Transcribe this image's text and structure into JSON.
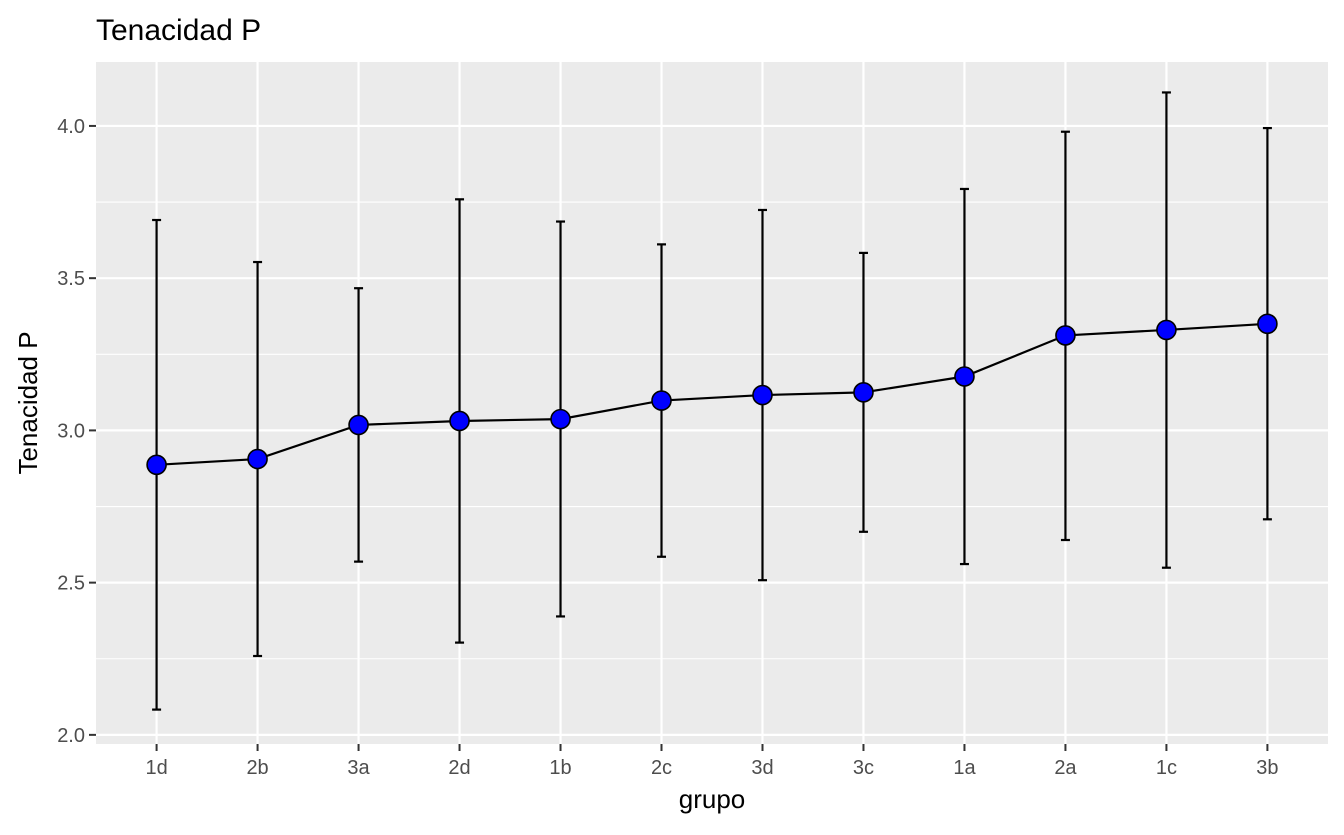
{
  "chart_data": {
    "type": "line",
    "title": "Tenacidad P",
    "xlabel": "grupo",
    "ylabel": "Tenacidad P",
    "categories": [
      "1d",
      "2b",
      "3a",
      "2d",
      "1b",
      "2c",
      "3d",
      "3c",
      "1a",
      "2a",
      "1c",
      "3b"
    ],
    "series": [
      {
        "values": [
          2.887,
          2.906,
          3.018,
          3.031,
          3.037,
          3.098,
          3.116,
          3.125,
          3.177,
          3.312,
          3.33,
          3.35
        ],
        "lower": [
          2.083,
          2.259,
          2.569,
          2.303,
          2.389,
          2.585,
          2.508,
          2.667,
          2.561,
          2.64,
          2.549,
          2.708
        ],
        "upper": [
          3.691,
          3.553,
          3.467,
          3.759,
          3.686,
          3.611,
          3.724,
          3.583,
          3.793,
          3.981,
          4.11,
          3.993
        ]
      }
    ],
    "y_ticks": [
      "2.0",
      "2.5",
      "3.0",
      "3.5",
      "4.0"
    ],
    "ylim": [
      1.97,
      4.21
    ],
    "grid": true,
    "legend": "none",
    "colors": {
      "panel": "#EBEBEB",
      "grid": "#FFFFFF",
      "line": "#000000",
      "point_fill": "#0000FF",
      "point_stroke": "#000000",
      "text": "#000000",
      "tick_text": "#4D4D4D",
      "tick_mark": "#333333"
    }
  }
}
